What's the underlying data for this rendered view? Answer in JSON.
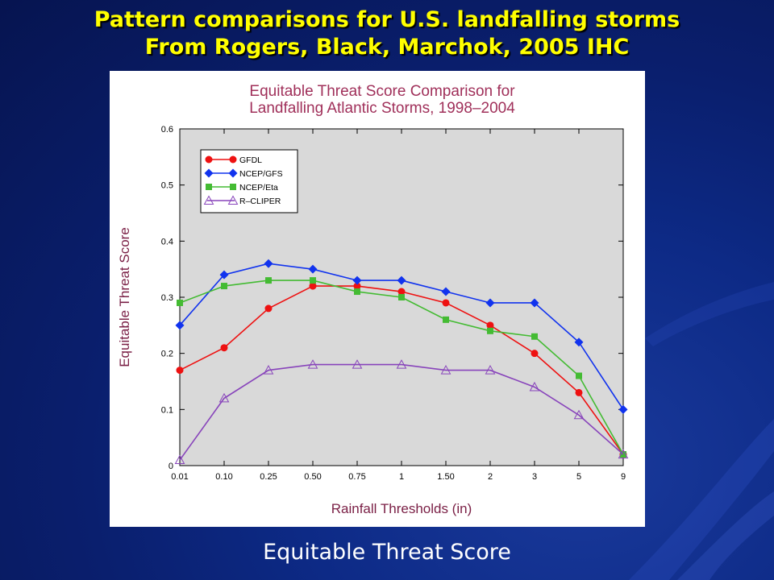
{
  "slide": {
    "title_line1": "Pattern comparisons for U.S. landfalling storms",
    "title_line2": "From Rogers, Black, Marchok, 2005 IHC",
    "caption": "Equitable Threat Score"
  },
  "colors": {
    "title": "#ffff00",
    "background": "#0a1f6e",
    "plot_area": "#d9d9d9",
    "chart_title": "#a0305a",
    "axis_label": "#7a1f45"
  },
  "chart_data": {
    "type": "line",
    "title_line1": "Equitable Threat Score Comparison for",
    "title_line2": "Landfalling Atlantic Storms, 1998–2004",
    "xlabel": "Rainfall Thresholds (in)",
    "ylabel": "Equitable Threat Score",
    "categories": [
      "0.01",
      "0.10",
      "0.25",
      "0.50",
      "0.75",
      "1",
      "1.50",
      "2",
      "3",
      "5",
      "9"
    ],
    "ylim": [
      0,
      0.6
    ],
    "yticks": [
      "0",
      "0.1",
      "0.2",
      "0.3",
      "0.4",
      "0.5",
      "0.6"
    ],
    "legend_position": "top-left",
    "grid": false,
    "series": [
      {
        "name": "GFDL",
        "color": "#ee1111",
        "marker": "circle",
        "values": [
          0.17,
          0.21,
          0.28,
          0.32,
          0.32,
          0.31,
          0.29,
          0.25,
          0.2,
          0.13,
          0.02
        ]
      },
      {
        "name": "NCEP/GFS",
        "color": "#1133ee",
        "marker": "diamond",
        "values": [
          0.25,
          0.34,
          0.36,
          0.35,
          0.33,
          0.33,
          0.31,
          0.29,
          0.29,
          0.22,
          0.1
        ]
      },
      {
        "name": "NCEP/Eta",
        "color": "#44bb33",
        "marker": "square",
        "values": [
          0.29,
          0.32,
          0.33,
          0.33,
          0.31,
          0.3,
          0.26,
          0.24,
          0.23,
          0.16,
          0.02
        ]
      },
      {
        "name": "R–CLIPER",
        "color": "#8844bb",
        "marker": "triangle-open",
        "values": [
          0.01,
          0.12,
          0.17,
          0.18,
          0.18,
          0.18,
          0.17,
          0.17,
          0.14,
          0.09,
          0.02
        ]
      }
    ]
  }
}
